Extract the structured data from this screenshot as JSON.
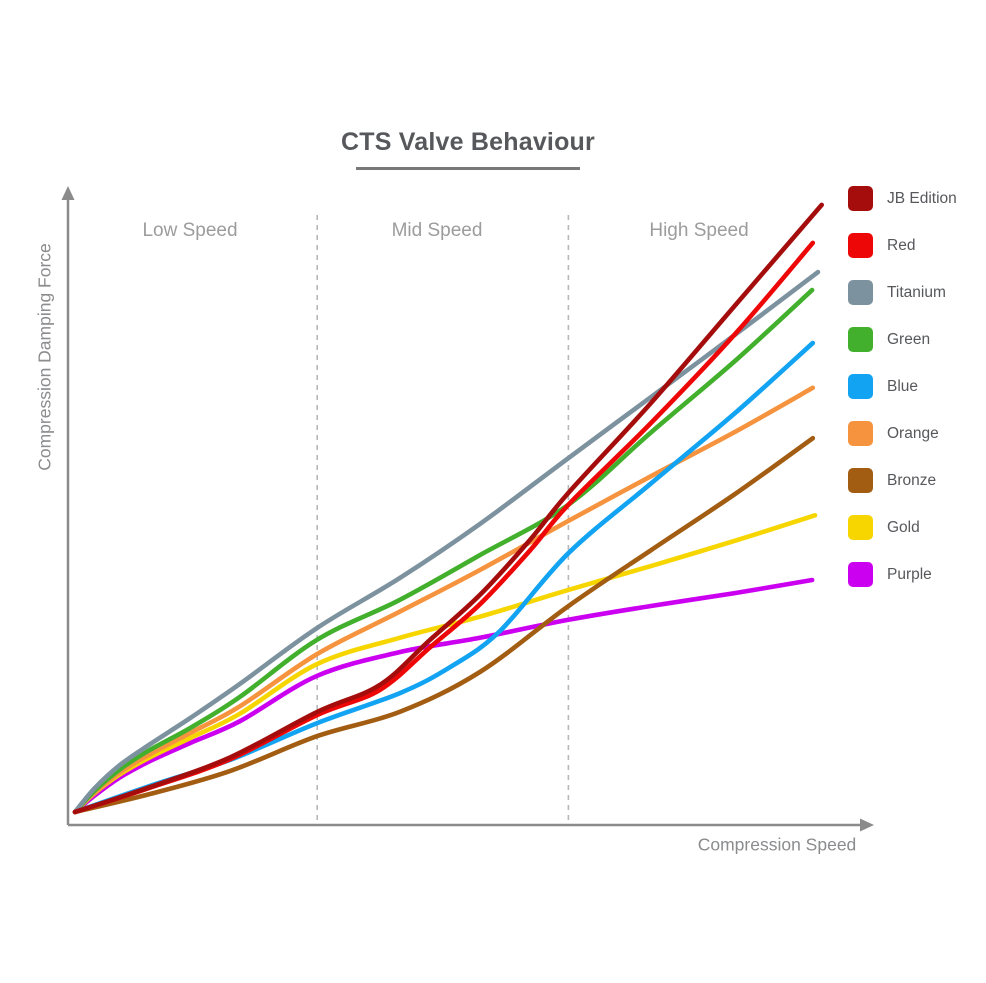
{
  "title": "CTS Valve Behaviour",
  "chart_data": {
    "type": "line",
    "title": "CTS Valve Behaviour",
    "xlabel": "Compression Speed",
    "ylabel": "Compression Damping Force",
    "x_range": [
      0,
      100
    ],
    "y_range": [
      0,
      100
    ],
    "grid": false,
    "axis_ticks": "none (qualitative axes with arrowheads)",
    "legend_position": "right",
    "regions": [
      {
        "label": "Low Speed",
        "x_start": 0,
        "x_end": 32.6
      },
      {
        "label": "Mid Speed",
        "x_start": 32.6,
        "x_end": 66.4
      },
      {
        "label": "High Speed",
        "x_start": 66.4,
        "x_end": 100
      }
    ],
    "separators_x": [
      32.6,
      66.4
    ],
    "series": [
      {
        "name": "JB Edition",
        "color": "#A50D0D",
        "points": [
          [
            0,
            0
          ],
          [
            10.1,
            4.0
          ],
          [
            20.9,
            8.8
          ],
          [
            32.6,
            16.1
          ],
          [
            41.0,
            20.4
          ],
          [
            47.8,
            27.7
          ],
          [
            54.5,
            34.9
          ],
          [
            61.2,
            43.7
          ],
          [
            66.4,
            51.3
          ],
          [
            77.4,
            65.6
          ],
          [
            88.8,
            81.4
          ],
          [
            100.5,
            97.6
          ]
        ]
      },
      {
        "name": "Red",
        "color": "#EE0707",
        "points": [
          [
            0,
            0
          ],
          [
            10.1,
            3.9
          ],
          [
            20.9,
            8.5
          ],
          [
            32.6,
            15.6
          ],
          [
            41.0,
            19.6
          ],
          [
            47.8,
            26.5
          ],
          [
            54.5,
            33.4
          ],
          [
            61.2,
            42.0
          ],
          [
            66.4,
            49.4
          ],
          [
            77.4,
            62.4
          ],
          [
            88.8,
            76.8
          ],
          [
            99.3,
            91.5
          ]
        ]
      },
      {
        "name": "Titanium",
        "color": "#7D929F",
        "points": [
          [
            0,
            0
          ],
          [
            2.7,
            3.9
          ],
          [
            6.1,
            7.6
          ],
          [
            10.1,
            10.9
          ],
          [
            15.5,
            15.1
          ],
          [
            22.2,
            20.6
          ],
          [
            32.6,
            29.6
          ],
          [
            43.7,
            37.6
          ],
          [
            54.5,
            46.3
          ],
          [
            66.4,
            56.9
          ],
          [
            77.4,
            66.6
          ],
          [
            88.8,
            76.7
          ],
          [
            100,
            86.8
          ]
        ]
      },
      {
        "name": "Green",
        "color": "#42B02C",
        "points": [
          [
            0,
            0
          ],
          [
            2.7,
            3.5
          ],
          [
            6.1,
            6.9
          ],
          [
            10.1,
            10.0
          ],
          [
            15.5,
            13.5
          ],
          [
            22.2,
            18.5
          ],
          [
            32.6,
            27.7
          ],
          [
            43.7,
            34.1
          ],
          [
            54.5,
            41.3
          ],
          [
            66.4,
            49.4
          ],
          [
            77.4,
            60.9
          ],
          [
            88.8,
            72.5
          ],
          [
            99.2,
            83.9
          ]
        ]
      },
      {
        "name": "Blue",
        "color": "#12A3F2",
        "points": [
          [
            0,
            0
          ],
          [
            10.1,
            4.2
          ],
          [
            20.9,
            8.4
          ],
          [
            32.6,
            14.3
          ],
          [
            43.7,
            19.1
          ],
          [
            50.5,
            23.3
          ],
          [
            57.2,
            29.1
          ],
          [
            66.4,
            41.6
          ],
          [
            77.4,
            52.7
          ],
          [
            88.8,
            64.1
          ],
          [
            99.3,
            75.4
          ]
        ]
      },
      {
        "name": "Orange",
        "color": "#F5933E",
        "points": [
          [
            0,
            0
          ],
          [
            2.7,
            3.2
          ],
          [
            6.1,
            6.4
          ],
          [
            10.1,
            9.3
          ],
          [
            15.5,
            12.7
          ],
          [
            22.2,
            17.0
          ],
          [
            32.6,
            25.4
          ],
          [
            43.7,
            32.2
          ],
          [
            54.5,
            38.9
          ],
          [
            66.4,
            46.8
          ],
          [
            77.4,
            53.9
          ],
          [
            88.8,
            61.1
          ],
          [
            99.3,
            68.2
          ]
        ]
      },
      {
        "name": "Bronze",
        "color": "#A35D12",
        "points": [
          [
            0,
            0
          ],
          [
            10.1,
            2.9
          ],
          [
            20.9,
            6.6
          ],
          [
            32.6,
            12.2
          ],
          [
            43.7,
            16.1
          ],
          [
            54.5,
            22.5
          ],
          [
            66.4,
            33.1
          ],
          [
            77.4,
            42.0
          ],
          [
            88.8,
            51.1
          ],
          [
            99.3,
            60.1
          ]
        ]
      },
      {
        "name": "Gold",
        "color": "#F7D600",
        "points": [
          [
            0,
            0
          ],
          [
            2.7,
            3.1
          ],
          [
            6.1,
            6.1
          ],
          [
            10.1,
            8.8
          ],
          [
            15.5,
            11.9
          ],
          [
            22.2,
            15.8
          ],
          [
            32.6,
            23.8
          ],
          [
            43.7,
            28.0
          ],
          [
            54.5,
            31.4
          ],
          [
            66.4,
            35.7
          ],
          [
            77.4,
            39.5
          ],
          [
            88.8,
            43.6
          ],
          [
            99.6,
            47.7
          ]
        ]
      },
      {
        "name": "Purple",
        "color": "#CC00F0",
        "points": [
          [
            0,
            0
          ],
          [
            2.7,
            2.7
          ],
          [
            6.1,
            5.6
          ],
          [
            10.1,
            8.2
          ],
          [
            15.5,
            11.1
          ],
          [
            22.2,
            14.6
          ],
          [
            32.6,
            21.9
          ],
          [
            43.7,
            25.7
          ],
          [
            54.5,
            28.0
          ],
          [
            66.4,
            30.9
          ],
          [
            77.4,
            33.1
          ],
          [
            88.8,
            35.2
          ],
          [
            99.2,
            37.3
          ]
        ]
      }
    ]
  },
  "legend": {
    "items": [
      {
        "label": "JB Edition",
        "color": "#A50D0D"
      },
      {
        "label": "Red",
        "color": "#EE0707"
      },
      {
        "label": "Titanium",
        "color": "#7D929F"
      },
      {
        "label": "Green",
        "color": "#42B02C"
      },
      {
        "label": "Blue",
        "color": "#12A3F2"
      },
      {
        "label": "Orange",
        "color": "#F5933E"
      },
      {
        "label": "Bronze",
        "color": "#A35D12"
      },
      {
        "label": "Gold",
        "color": "#F7D600"
      },
      {
        "label": "Purple",
        "color": "#CC00F0"
      }
    ]
  },
  "colors": {
    "axis": "#8B8B8B",
    "separator": "#B8B8B8",
    "title_text": "#57585B",
    "region_text": "#9C9C9C",
    "axis_text": "#8B8C8E"
  }
}
